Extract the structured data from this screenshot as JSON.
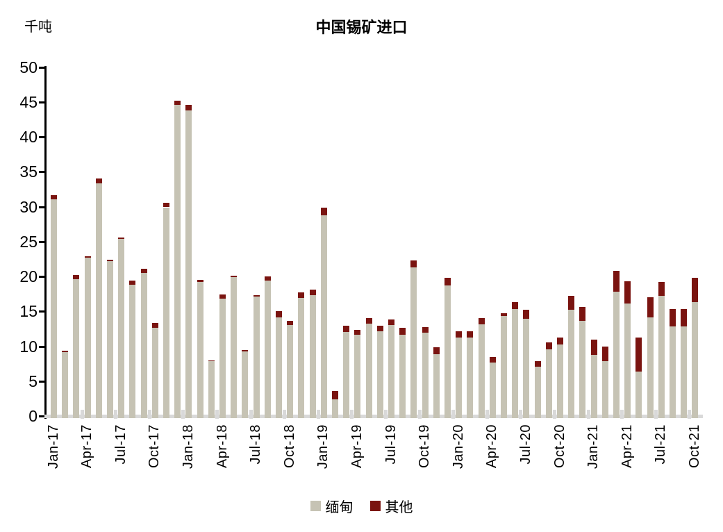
{
  "labels": {
    "unit": "千吨"
  },
  "legend": {
    "myanmar": {
      "label": "缅甸",
      "color": "#c6c3b4"
    },
    "other": {
      "label": "其他",
      "color": "#7a1410"
    }
  },
  "chart_data": {
    "type": "bar",
    "stacked": true,
    "title": "中国锡矿进口",
    "ylabel": "千吨",
    "ylim": [
      0,
      50
    ],
    "ytick_interval": 5,
    "grid": false,
    "legend_position": "bottom",
    "axis_color": "#000000",
    "baseline_color": "#d9d9d9",
    "categories": [
      "Jan-17",
      "Feb-17",
      "Mar-17",
      "Apr-17",
      "May-17",
      "Jun-17",
      "Jul-17",
      "Aug-17",
      "Sep-17",
      "Oct-17",
      "Nov-17",
      "Dec-17",
      "Jan-18",
      "Feb-18",
      "Mar-18",
      "Apr-18",
      "May-18",
      "Jun-18",
      "Jul-18",
      "Aug-18",
      "Sep-18",
      "Oct-18",
      "Nov-18",
      "Dec-18",
      "Jan-19",
      "Feb-19",
      "Mar-19",
      "Apr-19",
      "May-19",
      "Jun-19",
      "Jul-19",
      "Aug-19",
      "Sep-19",
      "Oct-19",
      "Nov-19",
      "Dec-19",
      "Jan-20",
      "Feb-20",
      "Mar-20",
      "Apr-20",
      "May-20",
      "Jun-20",
      "Jul-20",
      "Aug-20",
      "Sep-20",
      "Oct-20",
      "Nov-20",
      "Dec-20",
      "Jan-21",
      "Feb-21",
      "Mar-21",
      "Apr-21",
      "May-21",
      "Jun-21",
      "Jul-21",
      "Aug-21",
      "Sep-21",
      "Oct-21"
    ],
    "xticks_shown": [
      "Jan-17",
      "Apr-17",
      "Jul-17",
      "Oct-17",
      "Jan-18",
      "Apr-18",
      "Jul-18",
      "Oct-18",
      "Jan-19",
      "Apr-19",
      "Jul-19",
      "Oct-19",
      "Jan-20",
      "Apr-20",
      "Jul-20",
      "Oct-20",
      "Jan-21",
      "Apr-21",
      "Jul-21",
      "Oct-21"
    ],
    "series": [
      {
        "name": "缅甸",
        "color": "#c6c3b4",
        "values": [
          31.0,
          9.2,
          19.6,
          22.7,
          33.3,
          22.2,
          25.4,
          18.8,
          20.5,
          12.6,
          29.9,
          44.6,
          43.8,
          19.2,
          7.9,
          16.8,
          19.9,
          9.3,
          17.1,
          19.4,
          14.1,
          13.0,
          16.9,
          17.3,
          28.8,
          2.4,
          12.0,
          11.6,
          13.2,
          12.1,
          13.0,
          11.6,
          21.3,
          11.9,
          8.9,
          18.7,
          11.2,
          11.2,
          13.1,
          7.7,
          14.3,
          15.3,
          13.9,
          7.1,
          9.6,
          10.2,
          15.2,
          13.6,
          8.8,
          7.9,
          17.8,
          16.1,
          6.4,
          14.1,
          17.2,
          12.8,
          12.8,
          16.3
        ]
      },
      {
        "name": "其他",
        "color": "#7a1410",
        "values": [
          0.6,
          0.2,
          0.6,
          0.2,
          0.7,
          0.2,
          0.2,
          0.6,
          0.6,
          0.7,
          0.6,
          0.6,
          0.8,
          0.3,
          0.1,
          0.6,
          0.2,
          0.2,
          0.2,
          0.6,
          0.9,
          0.6,
          0.8,
          0.8,
          1.1,
          1.2,
          0.9,
          0.7,
          0.8,
          0.8,
          0.8,
          1.0,
          1.0,
          0.8,
          1.0,
          1.1,
          0.9,
          0.9,
          0.9,
          0.8,
          0.4,
          1.0,
          1.3,
          0.8,
          0.9,
          1.0,
          2.0,
          2.0,
          2.1,
          2.1,
          3.0,
          3.2,
          4.8,
          2.9,
          2.0,
          2.5,
          2.5,
          3.5
        ]
      }
    ]
  }
}
